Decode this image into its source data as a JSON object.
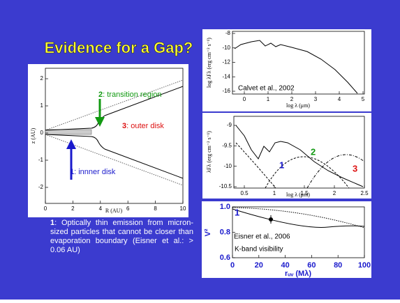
{
  "title": "Evidence for a Gap?",
  "disk_plot": {
    "x_label": "R (AU)",
    "y_label": "z (AU)",
    "xticks": [
      "0",
      "2",
      "4",
      "6",
      "8",
      "10"
    ],
    "yticks": [
      "2",
      "1",
      "0",
      "-1",
      "-2"
    ],
    "region_2": {
      "number": "2",
      "text": ": transition region"
    },
    "region_3": {
      "number": "3",
      "text": ": outer disk"
    },
    "region_1": {
      "number": "1",
      "text": ": innner disk"
    }
  },
  "note": {
    "number": "1",
    "text": ": Optically thin emission from micron-sized particles that cannot be closer than evaporation boundary (Eisner et al.: > 0.06 AU)"
  },
  "sed_plot": {
    "x_label": "log λ (μm)",
    "y_label": "log λFλ (erg cm⁻² s⁻¹)",
    "xticks": [
      "0",
      "1",
      "2",
      "3",
      "4",
      "5"
    ],
    "yticks": [
      "-8",
      "-10",
      "-12",
      "-14",
      "-16"
    ],
    "citation": "Calvet et al., 2002"
  },
  "ir_plot": {
    "x_label": "log λ (μm)",
    "y_label": "λFλ (erg cm⁻² s⁻¹)",
    "xticks": [
      "0.5",
      "1",
      "1.5",
      "2",
      "2.5"
    ],
    "yticks": [
      "-9",
      "-9.5",
      "-10",
      "-10.5"
    ],
    "component_1": "1",
    "component_2": "2",
    "component_3": "3"
  },
  "visibility_plot": {
    "x_label": "rᵤᵥ (Mλ)",
    "y_label": "V²",
    "xticks": [
      "0",
      "20",
      "40",
      "60",
      "80",
      "100"
    ],
    "yticks": [
      "1.0",
      "0.8",
      "0.6"
    ],
    "component_1": "1",
    "citation": "Eisner et al., 2006",
    "band": "K-band visibility"
  }
}
